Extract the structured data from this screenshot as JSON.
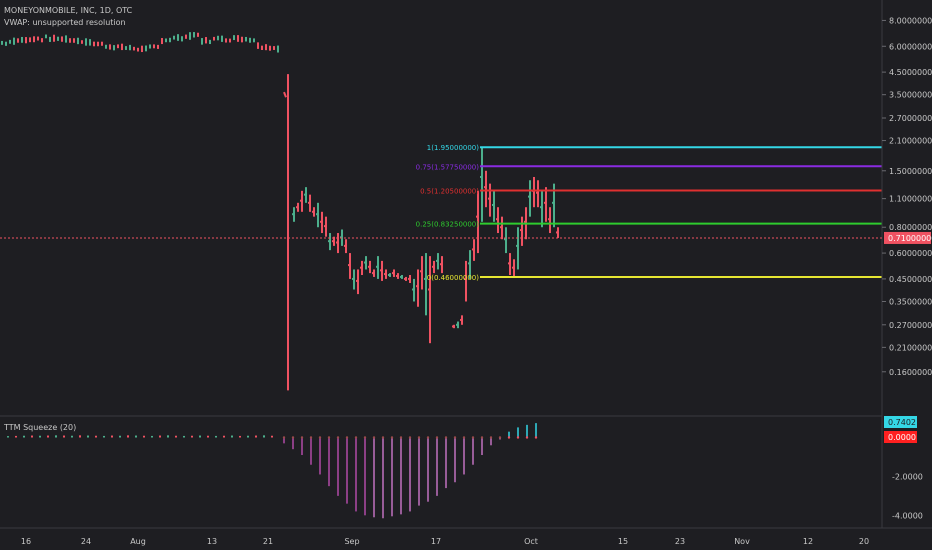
{
  "header": {
    "title": "MONEYONMOBILE, INC, 1D, OTC",
    "vwap_label": "VWAP: unsupported resolution"
  },
  "indicator": {
    "label": "TTM Squeeze (20)",
    "pos_bars": [
      0.02,
      0.03,
      0.04,
      0.05,
      0.04,
      0.05,
      0.06,
      0.05,
      0.04,
      0.06,
      0.05,
      0.04,
      0.03,
      0.05,
      0.04,
      0.06,
      0.05,
      0.04,
      0.03,
      0.05,
      0.06,
      0.04,
      0.03,
      0.04,
      0.05,
      0.04,
      0.03,
      0.04,
      0.05,
      0.03,
      0.04,
      0.05,
      0.06,
      0.04
    ],
    "neg_bars": [
      -0.3,
      -0.6,
      -0.9,
      -1.4,
      -1.9,
      -2.5,
      -3.0,
      -3.4,
      -3.8,
      -4.0,
      -4.1,
      -4.15,
      -4.05,
      -3.95,
      -3.8,
      -3.5,
      -3.3,
      -3.0,
      -2.6,
      -2.3,
      -1.9,
      -1.4,
      -0.9,
      -0.4,
      -0.1,
      0.3,
      0.52,
      0.65,
      0.74
    ]
  },
  "chart_data": {
    "type": "line",
    "title": "MONEYONMOBILE, INC, 1D, OTC",
    "series": [],
    "price_axis": {
      "scale": "log",
      "range": [
        0.1,
        9.5
      ],
      "ticks": [
        "8.00000000",
        "6.00000000",
        "4.50000000",
        "3.50000000",
        "2.70000000",
        "2.10000000",
        "1.50000000",
        "1.10000000",
        "0.80000000",
        "0.60000000",
        "0.45000000",
        "0.35000000",
        "0.27000000",
        "0.21000000",
        "0.16000000"
      ],
      "tick_values": [
        8,
        6,
        4.5,
        3.5,
        2.7,
        2.1,
        1.5,
        1.1,
        0.8,
        0.6,
        0.45,
        0.35,
        0.27,
        0.21,
        0.16
      ]
    },
    "last_price": {
      "value": 0.71,
      "label": "0.71000000",
      "color": "#f05262"
    },
    "fib_levels": [
      {
        "level": 1,
        "value": 1.95,
        "label": "1(1.95000000)",
        "color": "#34d7e6"
      },
      {
        "level": 0.75,
        "value": 1.5775,
        "label": "0.75(1.57750000)",
        "color": "#8a2be2"
      },
      {
        "level": 0.5,
        "value": 1.205,
        "label": "0.5(1.20500000)",
        "color": "#e03030"
      },
      {
        "level": 0.25,
        "value": 0.8325,
        "label": "0.25(0.83250000)",
        "color": "#2ecc2e"
      },
      {
        "level": 0,
        "value": 0.46,
        "label": "0(0.46000000)",
        "color": "#e6e632"
      }
    ],
    "osc_axis": {
      "ticks": [
        "-2.0000",
        "-4.0000"
      ],
      "tick_values": [
        -2,
        -4
      ],
      "range": [
        -4.6,
        0.9
      ],
      "current_pos": {
        "value": 0.7402,
        "label": "0.7402",
        "color": "#34d7e6"
      },
      "current_zero": {
        "value": 0,
        "label": "0.0000",
        "color": "#ff2020"
      }
    },
    "x_axis": {
      "ticks": [
        "16",
        "24",
        "Aug",
        "13",
        "21",
        "Sep",
        "17",
        "Oct",
        "15",
        "23",
        "Nov",
        "12",
        "20"
      ]
    },
    "colors": {
      "up": "#4caf8c",
      "down": "#f05262",
      "background": "#1e1e22"
    },
    "grid": false
  }
}
